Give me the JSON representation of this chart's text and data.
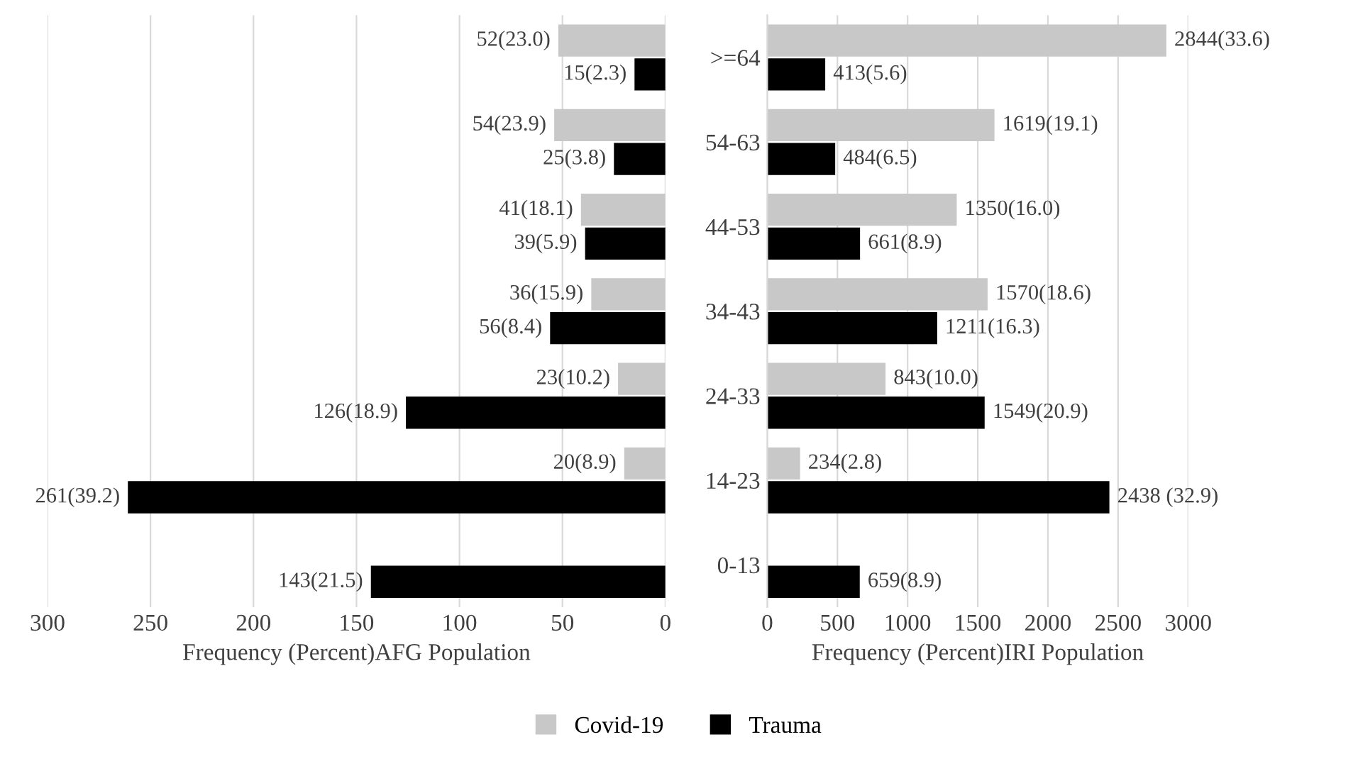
{
  "chart_data": [
    {
      "type": "bar",
      "orientation": "horizontal",
      "xlabel": "Frequency (Percent)AFG Population",
      "categories": [
        null,
        null,
        null,
        null,
        null,
        null,
        null
      ],
      "xlim": [
        300,
        0
      ],
      "xticks": [
        300,
        250,
        200,
        150,
        100,
        50,
        0
      ],
      "grid": "x",
      "tick_labels": "x",
      "series": [
        {
          "color": "#c8c8c8",
          "values": [
            52,
            54,
            41,
            36,
            23,
            20,
            null
          ],
          "value_labels": [
            "52(23.0)",
            "54(23.9)",
            "41(18.1)",
            "36(15.9)",
            "23(10.2)",
            "20(8.9)",
            null
          ]
        },
        {
          "color": "#000000",
          "values": [
            15,
            25,
            39,
            56,
            126,
            261,
            143
          ],
          "value_labels": [
            "15(2.3)",
            "25(3.8)",
            "39(5.9)",
            "56(8.4)",
            "126(18.9)",
            "261(39.2)",
            "143(21.5)"
          ]
        }
      ]
    },
    {
      "type": "bar",
      "orientation": "horizontal",
      "xlabel": "Frequency (Percent)IRI Population",
      "categories": [
        ">=64",
        "54-63",
        "44-53",
        "34-43",
        "24-33",
        "14-23",
        "0-13"
      ],
      "xlim": [
        0,
        3000
      ],
      "xticks": [
        0,
        500,
        1000,
        1500,
        2000,
        2500,
        3000
      ],
      "grid": "x",
      "legend": "bottom",
      "series": [
        {
          "name": "Covid-19",
          "color": "#c8c8c8",
          "values": [
            2844,
            1619,
            1350,
            1570,
            843,
            234,
            null
          ],
          "value_labels": [
            "2844(33.6)",
            "1619(19.1)",
            "1350(16.0)",
            "1570(18.6)",
            "843(10.0)",
            "234(2.8)",
            null
          ]
        },
        {
          "name": "Trauma",
          "color": "#000000",
          "values": [
            413,
            484,
            661,
            1211,
            1549,
            2438,
            659
          ],
          "value_labels": [
            "413(5.6)",
            "484(6.5)",
            "661(8.9)",
            "1211(16.3)",
            "1549(20.9)",
            "2438 (32.9)",
            "659(8.9)"
          ]
        }
      ]
    }
  ]
}
